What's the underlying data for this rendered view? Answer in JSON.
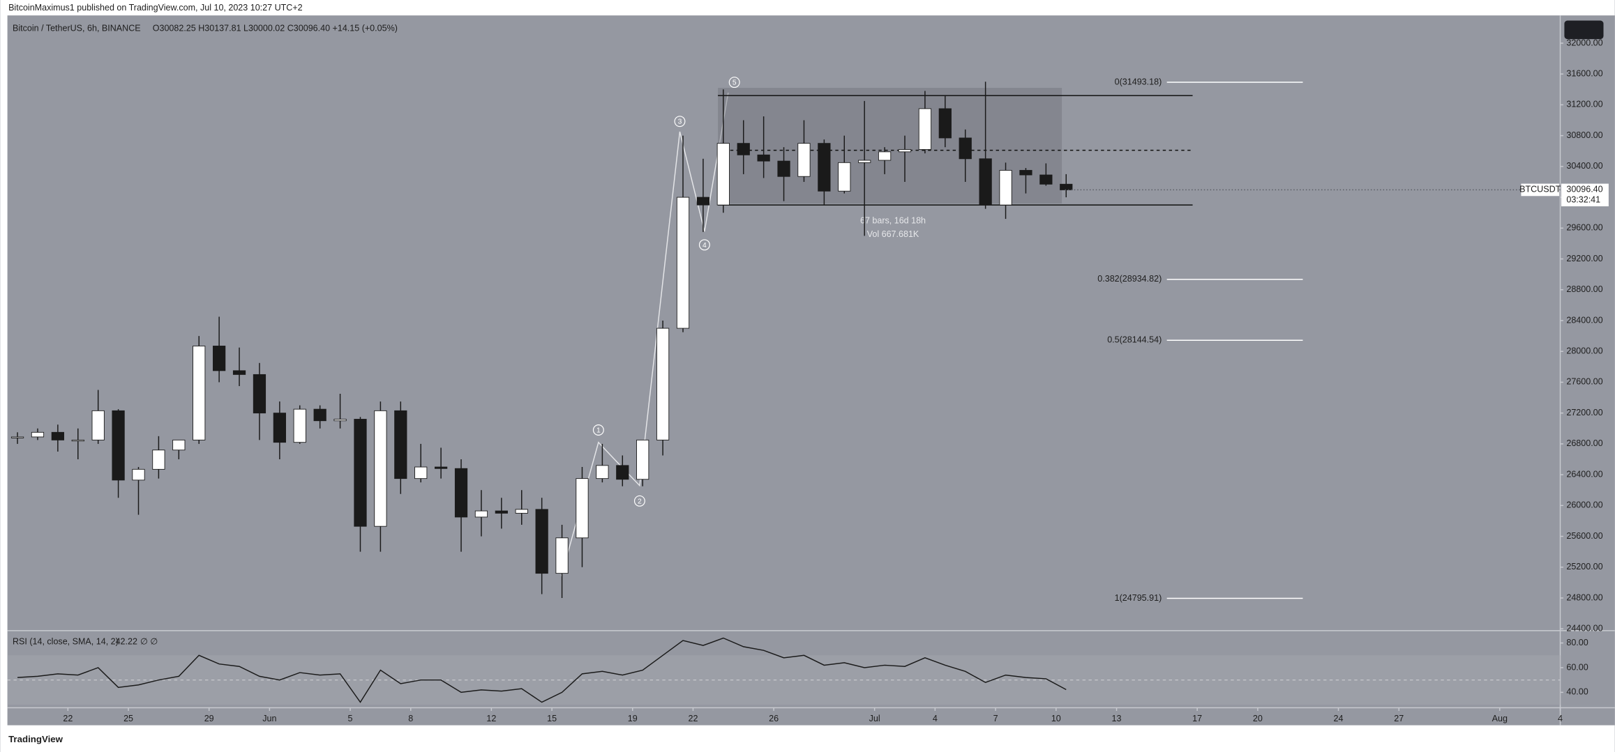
{
  "header": "BitcoinMaximus1 published on TradingView.com, Jul 10, 2023 10:27 UTC+2",
  "footer": "TradingView",
  "chart_data": [
    {
      "type": "candlestick",
      "title": "Bitcoin / TetherUS, 6h, BINANCE",
      "subtitle": "O30082.25 H30137.81 L30000.02 C30096.40 +14.15 (+0.05%)",
      "symbol": "BTCUSDT",
      "countdown": "03:32:41",
      "last_price": {
        "value": 30096.4,
        "label": "30096.40"
      },
      "x": [
        "05-19",
        "05-20",
        "05-21",
        "05-22",
        "05-23",
        "05-24",
        "05-25",
        "05-26",
        "05-27",
        "05-28",
        "05-29",
        "05-30",
        "05-31",
        "06-01",
        "06-02",
        "06-03",
        "06-04",
        "06-05",
        "06-06",
        "06-07",
        "06-08",
        "06-09",
        "06-10",
        "06-11",
        "06-12",
        "06-13",
        "06-14",
        "06-15",
        "06-16",
        "06-17",
        "06-18",
        "06-19",
        "06-20",
        "06-21",
        "06-22",
        "06-23",
        "06-24",
        "06-25",
        "06-26",
        "06-27",
        "06-28",
        "06-29",
        "06-30",
        "07-01",
        "07-02",
        "07-03",
        "07-04",
        "07-05",
        "07-06",
        "07-07",
        "07-08",
        "07-09",
        "07-10"
      ],
      "open": [
        26880,
        26890,
        26950,
        26850,
        26850,
        27230,
        26330,
        26470,
        26720,
        26850,
        28070,
        27750,
        27700,
        27200,
        26820,
        27250,
        27100,
        27120,
        25730,
        27230,
        26350,
        26500,
        26480,
        25850,
        25930,
        25900,
        25950,
        25120,
        25580,
        26350,
        26520,
        26340,
        26850,
        28300,
        30000,
        29900,
        30700,
        30550,
        30470,
        30270,
        30700,
        30080,
        30450,
        30480,
        30590,
        30620,
        31150,
        30770,
        30500,
        29900,
        30350,
        30290,
        30170
      ],
      "high": [
        26950,
        27000,
        27050,
        27000,
        27500,
        27250,
        26500,
        26900,
        26850,
        28200,
        28450,
        28050,
        27850,
        27350,
        27300,
        27300,
        27450,
        27150,
        27350,
        27350,
        26800,
        26750,
        26600,
        26200,
        26100,
        26200,
        26100,
        25750,
        26500,
        26800,
        26650,
        26850,
        28400,
        30800,
        30500,
        31400,
        31000,
        31050,
        30650,
        31000,
        30750,
        30800,
        31250,
        30650,
        30800,
        31380,
        31320,
        30880,
        31500,
        30450,
        30380,
        30440,
        30300
      ],
      "low": [
        26800,
        26850,
        26700,
        26600,
        26800,
        26100,
        25880,
        26350,
        26600,
        26800,
        27600,
        27550,
        26850,
        26600,
        26800,
        27000,
        27000,
        25400,
        25400,
        26150,
        26300,
        26350,
        25400,
        25600,
        25700,
        25750,
        24850,
        24800,
        25200,
        26300,
        26250,
        26250,
        26650,
        28250,
        29550,
        29800,
        30300,
        30250,
        29950,
        30200,
        29900,
        30050,
        29500,
        30300,
        30200,
        30570,
        30650,
        30200,
        29850,
        29720,
        30050,
        30150,
        30000
      ],
      "close": [
        26890,
        26950,
        26850,
        26850,
        27230,
        26330,
        26470,
        26720,
        26850,
        28070,
        27750,
        27700,
        27200,
        26820,
        27250,
        27100,
        27120,
        25730,
        27230,
        26350,
        26500,
        26480,
        25850,
        25930,
        25900,
        25950,
        25120,
        25580,
        26350,
        26520,
        26340,
        26850,
        28300,
        30000,
        29900,
        30700,
        30550,
        30470,
        30270,
        30700,
        30080,
        30450,
        30480,
        30590,
        30620,
        31150,
        30770,
        30500,
        29900,
        30350,
        30290,
        30170,
        30096.4
      ],
      "up_color": "#ffffff",
      "down_color": "#1a1a1a",
      "xlim": [
        "05-19",
        "08-04"
      ],
      "xticks": [
        {
          "value": "05-22",
          "label": "22"
        },
        {
          "value": "05-25",
          "label": "25"
        },
        {
          "value": "05-29",
          "label": "29"
        },
        {
          "value": "06-01",
          "label": "Jun"
        },
        {
          "value": "06-05",
          "label": "5"
        },
        {
          "value": "06-08",
          "label": "8"
        },
        {
          "value": "06-12",
          "label": "12"
        },
        {
          "value": "06-15",
          "label": "15"
        },
        {
          "value": "06-19",
          "label": "19"
        },
        {
          "value": "06-22",
          "label": "22"
        },
        {
          "value": "06-26",
          "label": "26"
        },
        {
          "value": "07-01",
          "label": "Jul"
        },
        {
          "value": "07-04",
          "label": "4"
        },
        {
          "value": "07-07",
          "label": "7"
        },
        {
          "value": "07-10",
          "label": "10"
        },
        {
          "value": "07-13",
          "label": "13"
        },
        {
          "value": "07-17",
          "label": "17"
        },
        {
          "value": "07-20",
          "label": "20"
        },
        {
          "value": "07-24",
          "label": "24"
        },
        {
          "value": "07-27",
          "label": "27"
        },
        {
          "value": "08-01",
          "label": "Aug"
        },
        {
          "value": "08-04",
          "label": "4"
        }
      ],
      "ylim": [
        24390,
        32360
      ],
      "yticks": [
        {
          "value": 24400,
          "label": "24400.00"
        },
        {
          "value": 24800,
          "label": "24800.00"
        },
        {
          "value": 25200,
          "label": "25200.00"
        },
        {
          "value": 25600,
          "label": "25600.00"
        },
        {
          "value": 26000,
          "label": "26000.00"
        },
        {
          "value": 26400,
          "label": "26400.00"
        },
        {
          "value": 26800,
          "label": "26800.00"
        },
        {
          "value": 27200,
          "label": "27200.00"
        },
        {
          "value": 27600,
          "label": "27600.00"
        },
        {
          "value": 28000,
          "label": "28000.00"
        },
        {
          "value": 28400,
          "label": "28400.00"
        },
        {
          "value": 28800,
          "label": "28800.00"
        },
        {
          "value": 29200,
          "label": "29200.00"
        },
        {
          "value": 29600,
          "label": "29600.00"
        },
        {
          "value": 30000,
          "label": "30000.00"
        },
        {
          "value": 30400,
          "label": "30400.00"
        },
        {
          "value": 30800,
          "label": "30800.00"
        },
        {
          "value": 31200,
          "label": "31200.00"
        },
        {
          "value": 31600,
          "label": "31600.00"
        },
        {
          "value": 32000,
          "label": "32000.00"
        }
      ],
      "grid": false,
      "fib_levels": [
        {
          "label": "0(31493.18)",
          "price": 31493.18
        },
        {
          "label": "0.382(28934.82)",
          "price": 28934.82
        },
        {
          "label": "0.5(28144.54)",
          "price": 28144.54
        },
        {
          "label": "1(24795.91)",
          "price": 24795.91
        }
      ],
      "range": {
        "top": 31420,
        "bottom": 29920,
        "upper": 31320,
        "lower": 29900,
        "middle": 30610
      },
      "range_stats": [
        "67 bars, 16d 18h",
        "Vol 667.681K"
      ],
      "waves": [
        "1",
        "2",
        "3",
        "4",
        "5"
      ]
    },
    {
      "type": "line",
      "title": "RSI (14, close, SMA, 14, 2)",
      "flags": "∅ ∅",
      "color": "#1a1a1a",
      "x": [
        "05-19",
        "05-20",
        "05-21",
        "05-22",
        "05-23",
        "05-24",
        "05-25",
        "05-26",
        "05-27",
        "05-28",
        "05-29",
        "05-30",
        "05-31",
        "06-01",
        "06-02",
        "06-03",
        "06-04",
        "06-05",
        "06-06",
        "06-07",
        "06-08",
        "06-09",
        "06-10",
        "06-11",
        "06-12",
        "06-13",
        "06-14",
        "06-15",
        "06-16",
        "06-17",
        "06-18",
        "06-19",
        "06-20",
        "06-21",
        "06-22",
        "06-23",
        "06-24",
        "06-25",
        "06-26",
        "06-27",
        "06-28",
        "06-29",
        "06-30",
        "07-01",
        "07-02",
        "07-03",
        "07-04",
        "07-05",
        "07-06",
        "07-07",
        "07-08",
        "07-09",
        "07-10"
      ],
      "values": [
        52,
        53,
        55,
        54,
        60,
        44,
        46,
        50,
        53,
        70,
        63,
        61,
        53,
        50,
        56,
        54,
        55,
        32,
        58,
        47,
        50,
        50,
        40,
        42,
        41,
        43,
        32,
        40,
        55,
        57,
        54,
        58,
        70,
        82,
        78,
        84,
        77,
        74,
        68,
        70,
        62,
        64,
        60,
        62,
        61,
        68,
        62,
        57,
        48,
        54,
        52,
        51,
        42.22
      ],
      "ylim": [
        27.5,
        89.2
      ],
      "yticks": [
        {
          "value": 40,
          "label": "40.00"
        },
        {
          "value": 60,
          "label": "60.00"
        },
        {
          "value": 80,
          "label": "80.00"
        }
      ]
    }
  ]
}
